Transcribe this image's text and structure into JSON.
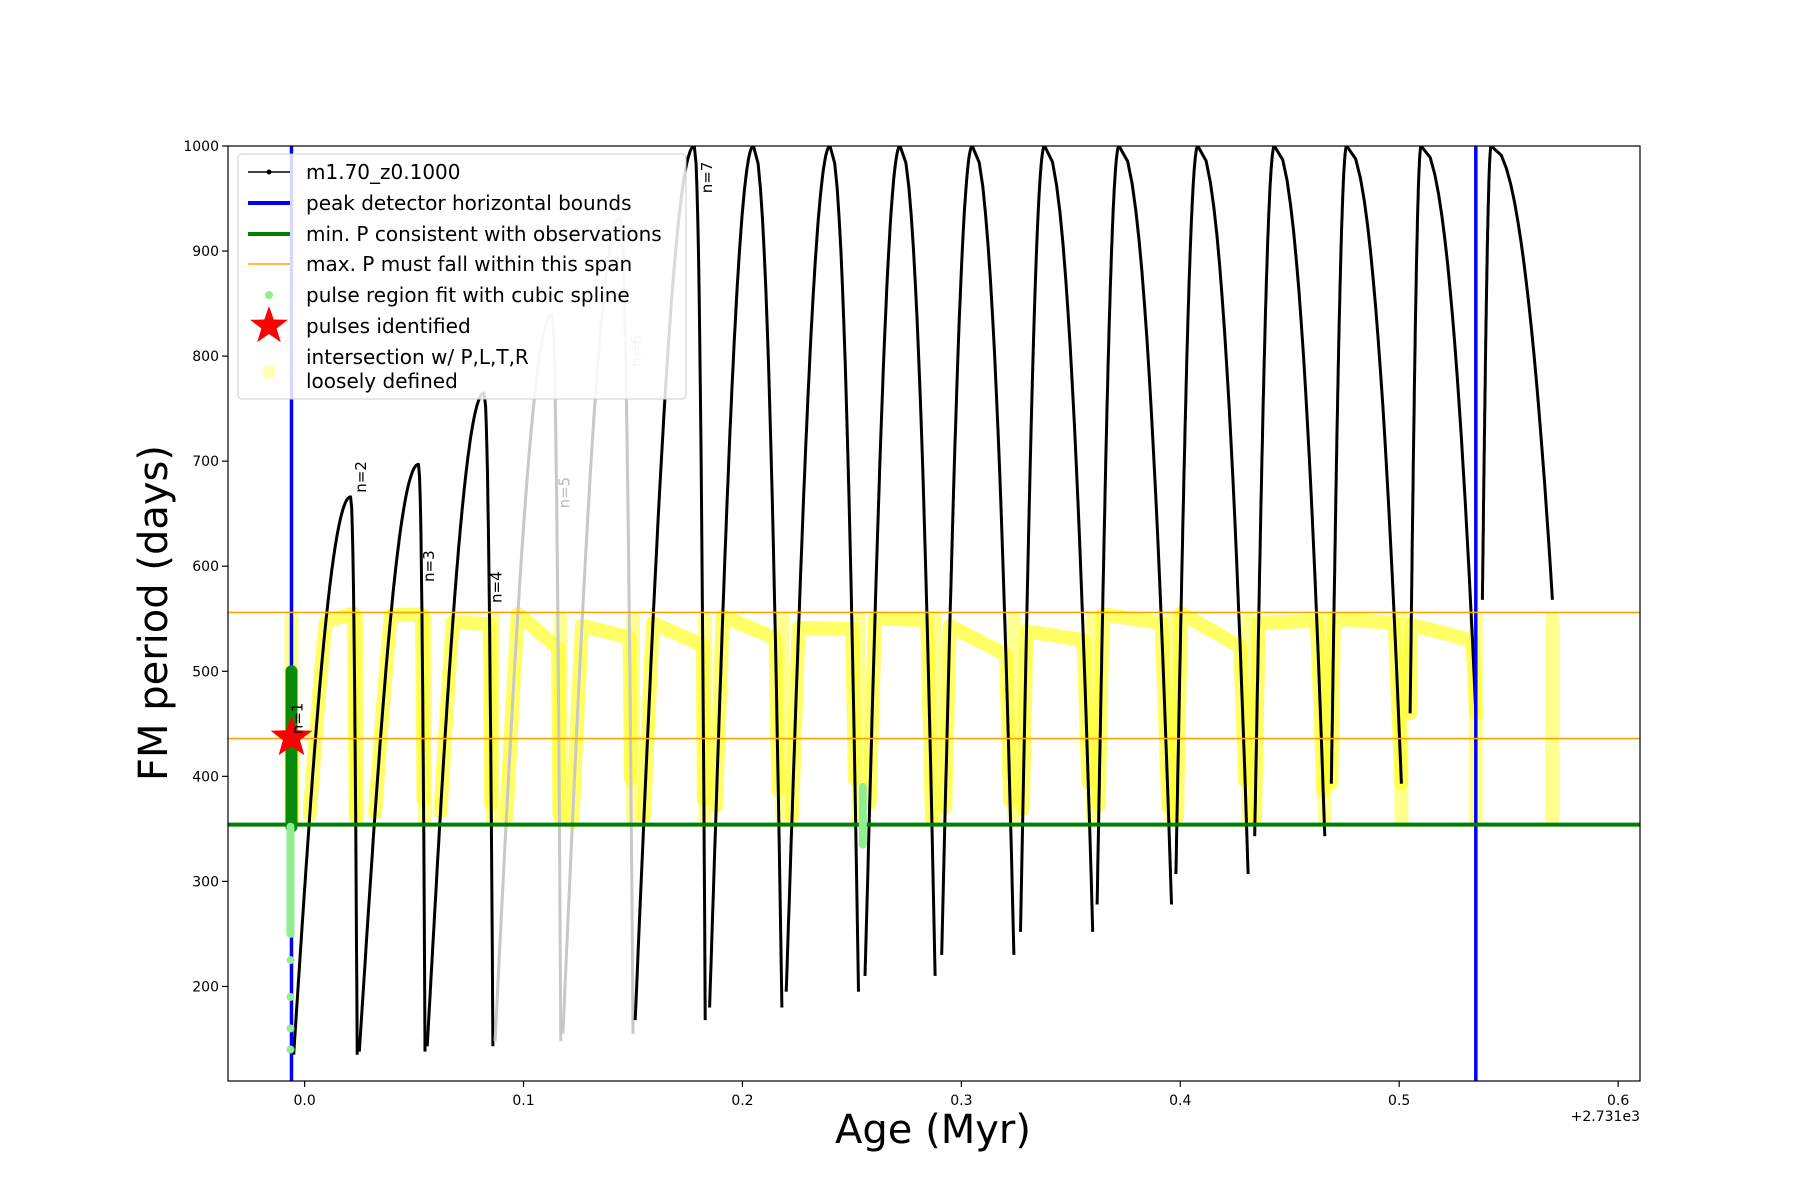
{
  "chart_data": {
    "type": "line",
    "title": "",
    "xlabel": "Age (Myr)",
    "ylabel": "FM period (days)",
    "x_offset_label": "+2.731e3",
    "xlim": [
      -0.035,
      0.61
    ],
    "ylim": [
      110,
      1000
    ],
    "xticks": [
      0.0,
      0.1,
      0.2,
      0.3,
      0.4,
      0.5,
      0.6
    ],
    "xtick_labels": [
      "0.0",
      "0.1",
      "0.2",
      "0.3",
      "0.4",
      "0.5",
      "0.6"
    ],
    "yticks": [
      200,
      300,
      400,
      500,
      600,
      700,
      800,
      900,
      1000
    ],
    "ytick_labels": [
      "200",
      "300",
      "400",
      "500",
      "600",
      "700",
      "800",
      "900",
      "1000"
    ],
    "grid": false,
    "legend_position": "top-left",
    "legend": [
      {
        "label": "m1.70_z0.1000",
        "style": "line-dot",
        "color": "#000000"
      },
      {
        "label": "peak detector horizontal bounds",
        "style": "line",
        "color": "#0000ff"
      },
      {
        "label": "min. P consistent with observations",
        "style": "line",
        "color": "#008000"
      },
      {
        "label": "max. P must fall within this span",
        "style": "line-thin",
        "color": "#ffa500"
      },
      {
        "label": "pulse region fit with cubic spline",
        "style": "dot",
        "color": "#90ee90"
      },
      {
        "label": "pulses identified",
        "style": "star",
        "color": "#ff0000"
      },
      {
        "label": "intersection w/ P,L,T,R\nloosely defined",
        "style": "circle",
        "color": "#ffff99"
      }
    ],
    "reference_lines": {
      "vertical_blue_x": [
        -0.006,
        0.535
      ],
      "horizontal_green_y": 354,
      "horizontal_orange_y": [
        436,
        556
      ]
    },
    "star": {
      "x": -0.006,
      "y": 437
    },
    "pulses": [
      {
        "n": "n=1",
        "start": -0.006,
        "peak_x": -0.005,
        "peak_y": 440,
        "drop_x": -0.006,
        "min_y": 255,
        "label_x": -0.001,
        "label_y": 440,
        "faded": false
      },
      {
        "n": "n=2",
        "start": -0.005,
        "peak_x": 0.021,
        "peak_y": 666,
        "drop_x": 0.024,
        "min_y": 135,
        "label_x": 0.028,
        "label_y": 670,
        "faded": false
      },
      {
        "n": "n=3",
        "start": 0.025,
        "peak_x": 0.052,
        "peak_y": 697,
        "drop_x": 0.055,
        "min_y": 138,
        "label_x": 0.059,
        "label_y": 585,
        "faded": false
      },
      {
        "n": "n=4",
        "start": 0.056,
        "peak_x": 0.082,
        "peak_y": 765,
        "drop_x": 0.086,
        "min_y": 143,
        "label_x": 0.09,
        "label_y": 565,
        "faded": false
      },
      {
        "n": "n=5",
        "start": 0.087,
        "peak_x": 0.113,
        "peak_y": 840,
        "drop_x": 0.117,
        "min_y": 148,
        "label_x": 0.121,
        "label_y": 655,
        "faded": true
      },
      {
        "n": "n=6",
        "start": 0.118,
        "peak_x": 0.144,
        "peak_y": 932,
        "drop_x": 0.15,
        "min_y": 155,
        "label_x": 0.154,
        "label_y": 790,
        "faded": true
      },
      {
        "n": "n=7",
        "start": 0.151,
        "peak_x": 0.178,
        "peak_y": 1000,
        "drop_x": 0.183,
        "min_y": 168,
        "label_x": 0.186,
        "label_y": 955,
        "faded": false
      },
      {
        "n": "",
        "start": 0.185,
        "peak_x": 0.205,
        "peak_y": 1000,
        "drop_x": 0.218,
        "min_y": 180,
        "faded": false
      },
      {
        "n": "",
        "start": 0.22,
        "peak_x": 0.24,
        "peak_y": 1000,
        "drop_x": 0.253,
        "min_y": 195,
        "faded": false
      },
      {
        "n": "",
        "start": 0.256,
        "peak_x": 0.272,
        "peak_y": 1000,
        "drop_x": 0.288,
        "min_y": 210,
        "faded": false
      },
      {
        "n": "",
        "start": 0.291,
        "peak_x": 0.305,
        "peak_y": 1000,
        "drop_x": 0.324,
        "min_y": 230,
        "faded": false
      },
      {
        "n": "",
        "start": 0.327,
        "peak_x": 0.338,
        "peak_y": 1000,
        "drop_x": 0.36,
        "min_y": 252,
        "faded": false
      },
      {
        "n": "",
        "start": 0.362,
        "peak_x": 0.372,
        "peak_y": 1000,
        "drop_x": 0.396,
        "min_y": 278,
        "faded": false
      },
      {
        "n": "",
        "start": 0.398,
        "peak_x": 0.408,
        "peak_y": 1000,
        "drop_x": 0.431,
        "min_y": 307,
        "faded": false
      },
      {
        "n": "",
        "start": 0.434,
        "peak_x": 0.443,
        "peak_y": 1000,
        "drop_x": 0.466,
        "min_y": 343,
        "faded": false
      },
      {
        "n": "",
        "start": 0.469,
        "peak_x": 0.476,
        "peak_y": 1000,
        "drop_x": 0.501,
        "min_y": 393,
        "faded": false
      },
      {
        "n": "",
        "start": 0.505,
        "peak_x": 0.51,
        "peak_y": 1000,
        "drop_x": 0.535,
        "min_y": 460,
        "faded": false
      },
      {
        "n": "",
        "start": 0.538,
        "peak_x": 0.542,
        "peak_y": 1000,
        "drop_x": 0.57,
        "min_y": 568,
        "faded": false
      }
    ]
  }
}
